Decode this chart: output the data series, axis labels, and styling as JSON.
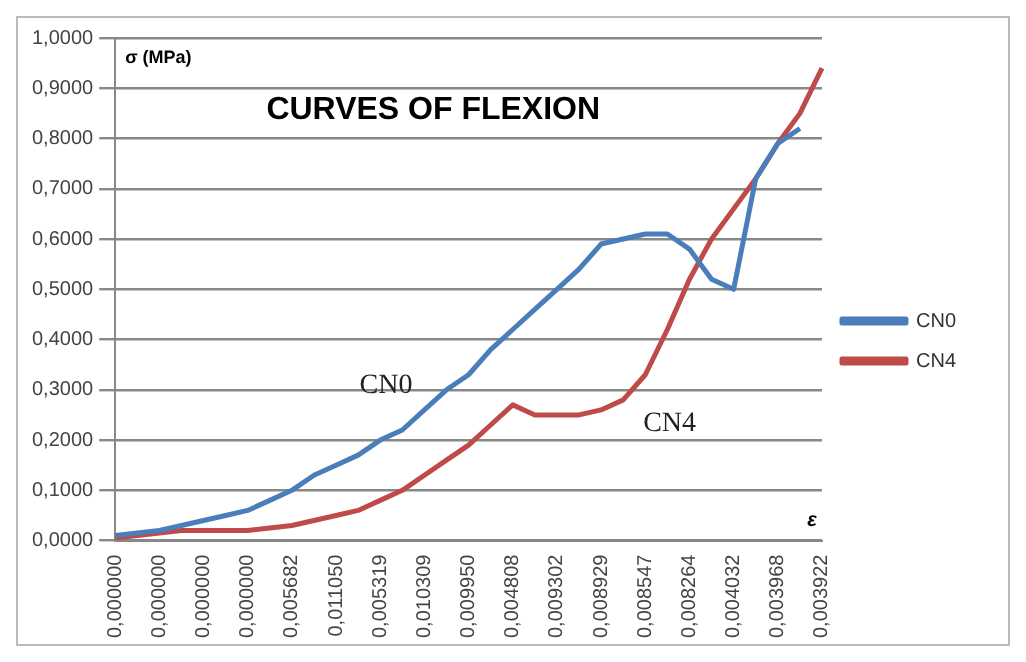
{
  "chart_data": {
    "type": "line",
    "title": "CURVES OF FLEXION",
    "ylabel": "σ (MPa)",
    "xlabel": "ε",
    "categories": [
      "0,000000",
      null,
      "0,000000",
      null,
      "0,000000",
      null,
      "0,000000",
      null,
      "0,005682",
      null,
      "0,011050",
      null,
      "0,005319",
      null,
      "0,010309",
      null,
      "0,009950",
      null,
      "0,004808",
      null,
      "0,009302",
      null,
      "0,008929",
      null,
      "0,008547",
      null,
      "0,008264",
      null,
      "0,004032",
      null,
      "0,003968",
      null,
      "0,003922"
    ],
    "series": [
      {
        "name": "CN0",
        "color": "#4a7ebb",
        "values": [
          0.01,
          0.015,
          0.02,
          0.03,
          0.04,
          0.05,
          0.06,
          0.08,
          0.1,
          0.13,
          0.15,
          0.17,
          0.2,
          0.22,
          0.26,
          0.3,
          0.33,
          0.38,
          0.42,
          0.46,
          0.5,
          0.54,
          0.59,
          0.6,
          0.61,
          0.61,
          0.58,
          0.52,
          0.5,
          0.72,
          0.79,
          0.82,
          null
        ]
      },
      {
        "name": "CN4",
        "color": "#be4b48",
        "values": [
          0.005,
          0.01,
          0.015,
          0.02,
          0.02,
          0.02,
          0.02,
          0.025,
          0.03,
          0.04,
          0.05,
          0.06,
          0.08,
          0.1,
          0.13,
          0.16,
          0.19,
          0.23,
          0.27,
          0.25,
          0.25,
          0.25,
          0.26,
          0.28,
          0.33,
          0.42,
          0.52,
          0.6,
          0.66,
          0.72,
          0.79,
          0.85,
          0.94
        ]
      }
    ],
    "annotations": [
      "CN0",
      "CN4"
    ],
    "ylim": [
      0,
      1
    ],
    "yticks": [
      {
        "value": 0,
        "label": "0,0000"
      },
      {
        "value": 0.1,
        "label": "0,1000"
      },
      {
        "value": 0.2,
        "label": "0,2000"
      },
      {
        "value": 0.3,
        "label": "0,3000"
      },
      {
        "value": 0.4,
        "label": "0,4000"
      },
      {
        "value": 0.5,
        "label": "0,5000"
      },
      {
        "value": 0.6,
        "label": "0,6000"
      },
      {
        "value": 0.7,
        "label": "0,7000"
      },
      {
        "value": 0.8,
        "label": "0,8000"
      },
      {
        "value": 0.9,
        "label": "0,9000"
      },
      {
        "value": 1,
        "label": "1,0000"
      }
    ],
    "grid": "y",
    "legend": "right",
    "marker": "none",
    "line_style": "solid"
  }
}
